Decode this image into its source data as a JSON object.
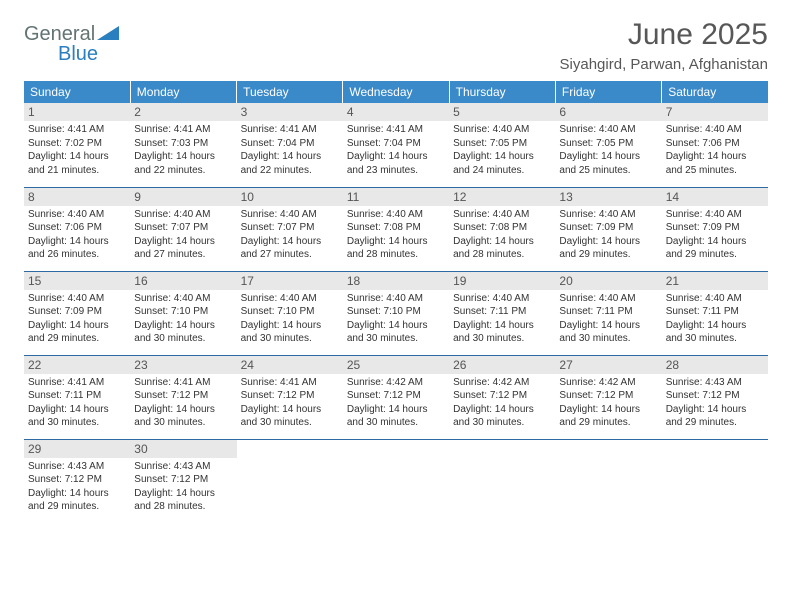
{
  "brand": {
    "part1": "General",
    "part2": "Blue"
  },
  "title": "June 2025",
  "location": "Siyahgird, Parwan, Afghanistan",
  "colors": {
    "header_bg": "#3a89c9",
    "header_text": "#ffffff",
    "daynum_bg": "#e8e8e8",
    "row_border": "#2d6aa3",
    "title_color": "#575757",
    "text_color": "#333333",
    "logo_gray": "#637373",
    "logo_blue": "#2a7fbf"
  },
  "typography": {
    "title_fontsize": 30,
    "location_fontsize": 15,
    "header_fontsize": 12,
    "daynum_fontsize": 12,
    "info_fontsize": 10
  },
  "columns": [
    "Sunday",
    "Monday",
    "Tuesday",
    "Wednesday",
    "Thursday",
    "Friday",
    "Saturday"
  ],
  "weeks": [
    [
      {
        "n": "1",
        "sr": "4:41 AM",
        "ss": "7:02 PM",
        "dl": "14 hours and 21 minutes."
      },
      {
        "n": "2",
        "sr": "4:41 AM",
        "ss": "7:03 PM",
        "dl": "14 hours and 22 minutes."
      },
      {
        "n": "3",
        "sr": "4:41 AM",
        "ss": "7:04 PM",
        "dl": "14 hours and 22 minutes."
      },
      {
        "n": "4",
        "sr": "4:41 AM",
        "ss": "7:04 PM",
        "dl": "14 hours and 23 minutes."
      },
      {
        "n": "5",
        "sr": "4:40 AM",
        "ss": "7:05 PM",
        "dl": "14 hours and 24 minutes."
      },
      {
        "n": "6",
        "sr": "4:40 AM",
        "ss": "7:05 PM",
        "dl": "14 hours and 25 minutes."
      },
      {
        "n": "7",
        "sr": "4:40 AM",
        "ss": "7:06 PM",
        "dl": "14 hours and 25 minutes."
      }
    ],
    [
      {
        "n": "8",
        "sr": "4:40 AM",
        "ss": "7:06 PM",
        "dl": "14 hours and 26 minutes."
      },
      {
        "n": "9",
        "sr": "4:40 AM",
        "ss": "7:07 PM",
        "dl": "14 hours and 27 minutes."
      },
      {
        "n": "10",
        "sr": "4:40 AM",
        "ss": "7:07 PM",
        "dl": "14 hours and 27 minutes."
      },
      {
        "n": "11",
        "sr": "4:40 AM",
        "ss": "7:08 PM",
        "dl": "14 hours and 28 minutes."
      },
      {
        "n": "12",
        "sr": "4:40 AM",
        "ss": "7:08 PM",
        "dl": "14 hours and 28 minutes."
      },
      {
        "n": "13",
        "sr": "4:40 AM",
        "ss": "7:09 PM",
        "dl": "14 hours and 29 minutes."
      },
      {
        "n": "14",
        "sr": "4:40 AM",
        "ss": "7:09 PM",
        "dl": "14 hours and 29 minutes."
      }
    ],
    [
      {
        "n": "15",
        "sr": "4:40 AM",
        "ss": "7:09 PM",
        "dl": "14 hours and 29 minutes."
      },
      {
        "n": "16",
        "sr": "4:40 AM",
        "ss": "7:10 PM",
        "dl": "14 hours and 30 minutes."
      },
      {
        "n": "17",
        "sr": "4:40 AM",
        "ss": "7:10 PM",
        "dl": "14 hours and 30 minutes."
      },
      {
        "n": "18",
        "sr": "4:40 AM",
        "ss": "7:10 PM",
        "dl": "14 hours and 30 minutes."
      },
      {
        "n": "19",
        "sr": "4:40 AM",
        "ss": "7:11 PM",
        "dl": "14 hours and 30 minutes."
      },
      {
        "n": "20",
        "sr": "4:40 AM",
        "ss": "7:11 PM",
        "dl": "14 hours and 30 minutes."
      },
      {
        "n": "21",
        "sr": "4:40 AM",
        "ss": "7:11 PM",
        "dl": "14 hours and 30 minutes."
      }
    ],
    [
      {
        "n": "22",
        "sr": "4:41 AM",
        "ss": "7:11 PM",
        "dl": "14 hours and 30 minutes."
      },
      {
        "n": "23",
        "sr": "4:41 AM",
        "ss": "7:12 PM",
        "dl": "14 hours and 30 minutes."
      },
      {
        "n": "24",
        "sr": "4:41 AM",
        "ss": "7:12 PM",
        "dl": "14 hours and 30 minutes."
      },
      {
        "n": "25",
        "sr": "4:42 AM",
        "ss": "7:12 PM",
        "dl": "14 hours and 30 minutes."
      },
      {
        "n": "26",
        "sr": "4:42 AM",
        "ss": "7:12 PM",
        "dl": "14 hours and 30 minutes."
      },
      {
        "n": "27",
        "sr": "4:42 AM",
        "ss": "7:12 PM",
        "dl": "14 hours and 29 minutes."
      },
      {
        "n": "28",
        "sr": "4:43 AM",
        "ss": "7:12 PM",
        "dl": "14 hours and 29 minutes."
      }
    ],
    [
      {
        "n": "29",
        "sr": "4:43 AM",
        "ss": "7:12 PM",
        "dl": "14 hours and 29 minutes."
      },
      {
        "n": "30",
        "sr": "4:43 AM",
        "ss": "7:12 PM",
        "dl": "14 hours and 28 minutes."
      },
      null,
      null,
      null,
      null,
      null
    ]
  ],
  "labels": {
    "sunrise": "Sunrise: ",
    "sunset": "Sunset: ",
    "daylight": "Daylight: "
  }
}
